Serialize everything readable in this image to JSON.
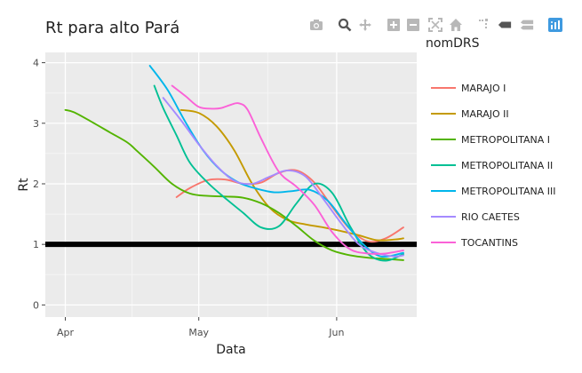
{
  "chart_data": {
    "type": "line",
    "title": "Rt para alto Pará",
    "xlabel": "Data",
    "ylabel": "Rt",
    "legend_title": "nomDRS",
    "x_ticks": [
      {
        "label": "Apr",
        "day": 0
      },
      {
        "label": "May",
        "day": 30
      },
      {
        "label": "Jun",
        "day": 61
      }
    ],
    "y_ticks": [
      0,
      1,
      2,
      3,
      4
    ],
    "xlim_days": [
      -4.5,
      79
    ],
    "ylim": [
      -0.2,
      4.17
    ],
    "x_axis_note": "x values are days since Apr 1",
    "reference_line": {
      "y": 1,
      "color": "#000000"
    },
    "series": [
      {
        "name": "MARAJO I",
        "color": "#F8766D",
        "x": [
          25,
          28,
          32,
          36,
          40,
          44,
          48,
          52,
          56,
          60,
          64,
          68,
          72,
          76
        ],
        "y": [
          1.78,
          1.93,
          2.06,
          2.07,
          2.0,
          2.02,
          2.18,
          2.22,
          2.02,
          1.62,
          1.25,
          1.05,
          1.1,
          1.28
        ]
      },
      {
        "name": "MARAJO II",
        "color": "#C49A00",
        "x": [
          26,
          30,
          34,
          38,
          42,
          46,
          50,
          54,
          58,
          62,
          66,
          70,
          74,
          76
        ],
        "y": [
          3.22,
          3.17,
          2.95,
          2.55,
          2.0,
          1.6,
          1.4,
          1.33,
          1.28,
          1.22,
          1.15,
          1.07,
          1.08,
          1.1
        ]
      },
      {
        "name": "METROPOLITANA I",
        "color": "#53B400",
        "x": [
          0,
          2,
          6,
          10,
          14,
          16,
          20,
          24,
          28,
          32,
          36,
          40,
          44,
          48,
          52,
          56,
          60,
          64,
          68,
          72,
          76
        ],
        "y": [
          3.22,
          3.18,
          3.02,
          2.85,
          2.68,
          2.55,
          2.28,
          2.0,
          1.84,
          1.8,
          1.79,
          1.77,
          1.68,
          1.52,
          1.3,
          1.06,
          0.9,
          0.82,
          0.78,
          0.76,
          0.74
        ]
      },
      {
        "name": "METROPOLITANA II",
        "color": "#00C094",
        "x": [
          20,
          22,
          25,
          28,
          32,
          36,
          40,
          44,
          48,
          52,
          56,
          60,
          64,
          68,
          72,
          76
        ],
        "y": [
          3.62,
          3.25,
          2.8,
          2.35,
          2.02,
          1.76,
          1.52,
          1.28,
          1.3,
          1.68,
          2.0,
          1.85,
          1.3,
          0.85,
          0.73,
          0.84
        ]
      },
      {
        "name": "METROPOLITANA III",
        "color": "#00B6EB",
        "x": [
          19,
          23,
          27,
          31,
          35,
          39,
          43,
          47,
          51,
          55,
          59,
          63,
          67,
          71,
          76
        ],
        "y": [
          3.95,
          3.55,
          3.02,
          2.55,
          2.22,
          2.02,
          1.92,
          1.86,
          1.88,
          1.9,
          1.72,
          1.35,
          1.0,
          0.8,
          0.86
        ]
      },
      {
        "name": "RIO CAETES",
        "color": "#A58AFF",
        "x": [
          22,
          26,
          30,
          34,
          38,
          42,
          46,
          50,
          54,
          58,
          62,
          66,
          70,
          74,
          76
        ],
        "y": [
          3.42,
          3.05,
          2.65,
          2.3,
          2.05,
          2.0,
          2.12,
          2.22,
          2.12,
          1.75,
          1.35,
          1.0,
          0.86,
          0.8,
          0.82
        ]
      },
      {
        "name": "TOCANTINS",
        "color": "#FB61D7",
        "x": [
          24,
          27,
          30,
          33,
          35,
          37,
          39,
          41,
          44,
          48,
          52,
          56,
          60,
          64,
          68,
          72,
          76
        ],
        "y": [
          3.62,
          3.45,
          3.27,
          3.24,
          3.25,
          3.3,
          3.33,
          3.22,
          2.75,
          2.2,
          1.95,
          1.65,
          1.2,
          0.92,
          0.85,
          0.85,
          0.9
        ]
      }
    ]
  },
  "modebar": {
    "buttons": [
      "camera-icon",
      "zoom-icon",
      "pan-icon",
      "zoom-in-icon",
      "zoom-out-icon",
      "autoscale-icon",
      "home-icon",
      "spike-icon",
      "hover-closest-icon",
      "hover-compare-icon",
      "plotly-logo-icon"
    ]
  }
}
